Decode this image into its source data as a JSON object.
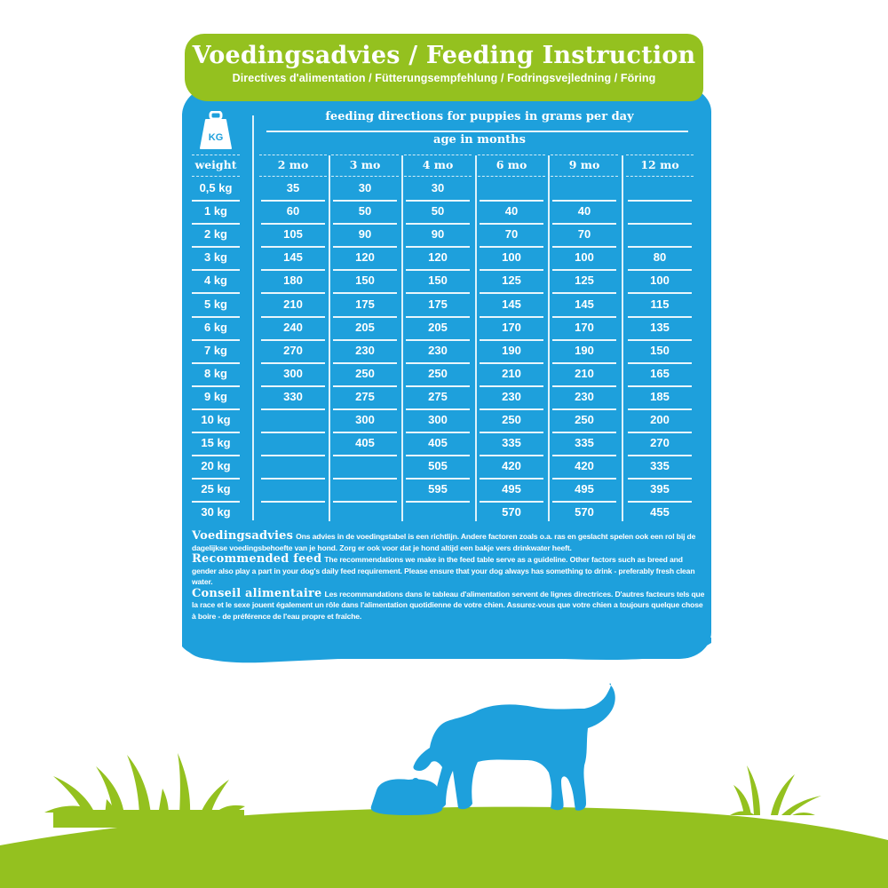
{
  "header": {
    "title": "Voedingsadvies / Feeding Instruction",
    "subtitle": "Directives d'alimentation / Fütterungsempfehlung / Fodringsvejledning / Föring"
  },
  "table": {
    "icon": "weight-kg-icon",
    "icon_label": "KG",
    "caption": "feeding directions for puppies in grams per day",
    "subcaption": "age in months",
    "weight_header": "weight",
    "columns": [
      "2 mo",
      "3 mo",
      "4 mo",
      "6 mo",
      "9 mo",
      "12 mo"
    ],
    "rows": [
      {
        "weight": "0,5 kg",
        "values": [
          "35",
          "30",
          "30",
          "",
          "",
          ""
        ]
      },
      {
        "weight": "1 kg",
        "values": [
          "60",
          "50",
          "50",
          "40",
          "40",
          ""
        ]
      },
      {
        "weight": "2 kg",
        "values": [
          "105",
          "90",
          "90",
          "70",
          "70",
          ""
        ]
      },
      {
        "weight": "3 kg",
        "values": [
          "145",
          "120",
          "120",
          "100",
          "100",
          "80"
        ]
      },
      {
        "weight": "4 kg",
        "values": [
          "180",
          "150",
          "150",
          "125",
          "125",
          "100"
        ]
      },
      {
        "weight": "5 kg",
        "values": [
          "210",
          "175",
          "175",
          "145",
          "145",
          "115"
        ]
      },
      {
        "weight": "6 kg",
        "values": [
          "240",
          "205",
          "205",
          "170",
          "170",
          "135"
        ]
      },
      {
        "weight": "7 kg",
        "values": [
          "270",
          "230",
          "230",
          "190",
          "190",
          "150"
        ]
      },
      {
        "weight": "8 kg",
        "values": [
          "300",
          "250",
          "250",
          "210",
          "210",
          "165"
        ]
      },
      {
        "weight": "9 kg",
        "values": [
          "330",
          "275",
          "275",
          "230",
          "230",
          "185"
        ]
      },
      {
        "weight": "10 kg",
        "values": [
          "",
          "300",
          "300",
          "250",
          "250",
          "200"
        ]
      },
      {
        "weight": "15 kg",
        "values": [
          "",
          "405",
          "405",
          "335",
          "335",
          "270"
        ]
      },
      {
        "weight": "20 kg",
        "values": [
          "",
          "",
          "505",
          "420",
          "420",
          "335"
        ]
      },
      {
        "weight": "25 kg",
        "values": [
          "",
          "",
          "595",
          "495",
          "495",
          "395"
        ]
      },
      {
        "weight": "30 kg",
        "values": [
          "",
          "",
          "",
          "570",
          "570",
          "455"
        ]
      }
    ]
  },
  "notes": [
    {
      "heading": "Voedingsadvies",
      "text": "Ons advies in de voedingstabel is een richtlijn. Andere factoren zoals o.a. ras en geslacht spelen ook een rol bij de dagelijkse voedingsbehoefte van je hond. Zorg er ook voor dat je hond altijd een bakje vers drinkwater heeft."
    },
    {
      "heading": "Recommended feed",
      "text": "The recommendations we make in the feed table serve as a guideline. Other factors such as breed and gender also play a part in your dog's daily feed requirement. Please ensure that your dog always has something to drink - preferably fresh clean water."
    },
    {
      "heading": "Conseil alimentaire",
      "text": "Les recommandations dans le tableau d'alimentation servent de lignes directrices. D'autres facteurs tels que la race et le sexe jouent également un rôle dans l'alimentation quotidienne de votre chien. Assurez-vous que votre chien a toujours quelque chose à boire - de préférence de l'eau propre et fraîche."
    }
  ],
  "illustration": {
    "subject": "dog-eating-from-bowl",
    "elements": [
      "grass-hill",
      "grass-tuft-left",
      "grass-tuft-right",
      "dog-silhouette",
      "food-bowl"
    ]
  },
  "colors": {
    "green": "#94c11f",
    "blue": "#1ea0dc",
    "white": "#ffffff"
  }
}
